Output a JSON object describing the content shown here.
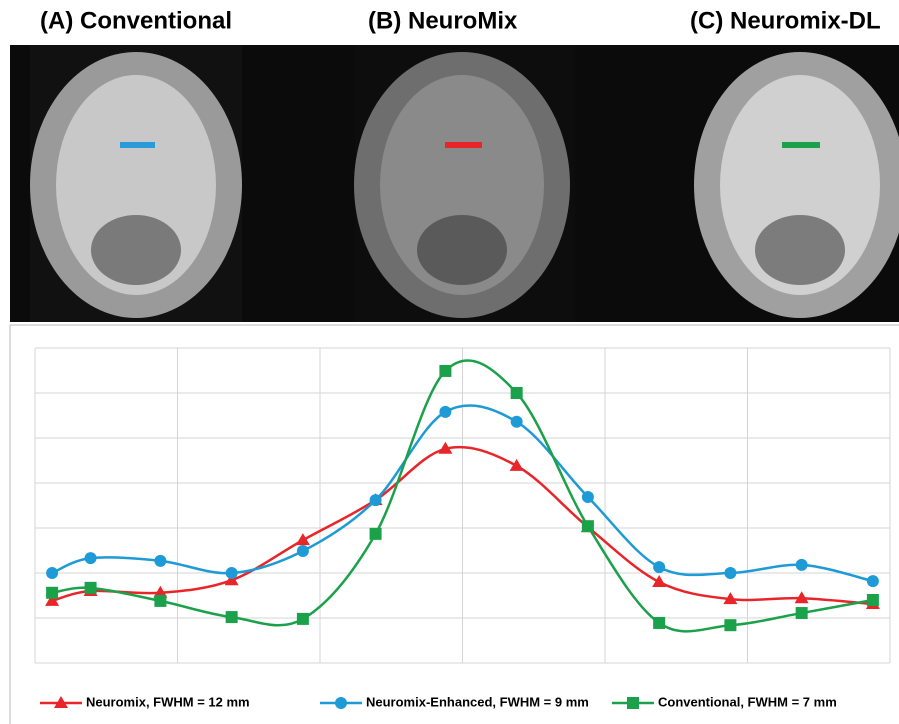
{
  "panels": [
    "(A) Conventional",
    "(B) NeuroMix",
    "(C) Neuromix-DL"
  ],
  "chart_data": {
    "type": "line",
    "x": [
      0.12,
      0.39,
      0.88,
      1.38,
      1.88,
      2.39,
      2.88,
      3.38,
      3.88,
      4.38,
      4.88,
      5.38,
      5.88
    ],
    "xlim": [
      0,
      6
    ],
    "xticks": [
      0,
      1,
      2,
      3,
      4,
      5,
      6
    ],
    "ylim": [
      0,
      7
    ],
    "yticks": [
      0,
      1,
      2,
      3,
      4,
      5,
      6,
      7
    ],
    "grid": true,
    "legend": "bottom",
    "series": [
      {
        "name": "Neuromix, FWHM = 12 mm",
        "color": "#e8262a",
        "marker": "triangle",
        "values": [
          1.38,
          1.6,
          1.56,
          1.84,
          2.73,
          3.62,
          4.76,
          4.38,
          3.02,
          1.8,
          1.42,
          1.44,
          1.31
        ]
      },
      {
        "name": "Neuromix-Enhanced, FWHM = 9 mm",
        "color": "#1e9ad6",
        "marker": "circle",
        "values": [
          2.0,
          2.33,
          2.27,
          2.0,
          2.49,
          3.62,
          5.58,
          5.36,
          3.69,
          2.13,
          2.0,
          2.18,
          1.82
        ]
      },
      {
        "name": "Conventional, FWHM = 7 mm",
        "color": "#1aa14a",
        "marker": "square",
        "values": [
          1.56,
          1.67,
          1.38,
          1.02,
          0.98,
          2.87,
          6.49,
          6.0,
          3.04,
          0.89,
          0.84,
          1.11,
          1.4
        ]
      }
    ]
  }
}
